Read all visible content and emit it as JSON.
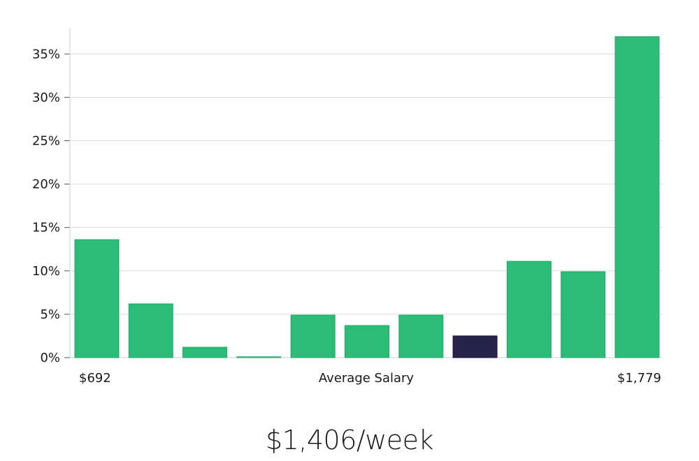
{
  "chart_data": {
    "type": "bar",
    "title": "",
    "xlabel": "Average Salary",
    "ylabel": "",
    "x_min_label": "$692",
    "x_max_label": "$1,779",
    "ylim": [
      0,
      38
    ],
    "yticks": [
      0,
      5,
      10,
      15,
      20,
      25,
      30,
      35
    ],
    "ytick_labels": [
      "0%",
      "5%",
      "10%",
      "15%",
      "20%",
      "25%",
      "30%",
      "35%"
    ],
    "values": [
      13.6,
      6.2,
      1.2,
      0.1,
      4.9,
      3.7,
      4.9,
      2.5,
      11.1,
      9.9,
      37.0
    ],
    "highlight_index": 7,
    "colors": {
      "bar": "#2bbd77",
      "highlight": "#27234a",
      "grid": "#dcdcdc",
      "axis": "#cfcfcf"
    }
  },
  "summary": {
    "salary": "$1,406/week"
  }
}
